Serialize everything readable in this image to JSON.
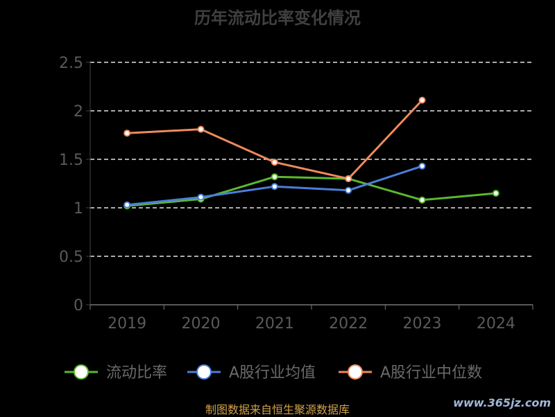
{
  "chart_data": {
    "type": "line",
    "title": "历年流动比率变化情况",
    "categories": [
      "2019",
      "2020",
      "2021",
      "2022",
      "2023",
      "2024"
    ],
    "ylim": [
      0,
      2.5
    ],
    "yticks": [
      "0",
      "0.5",
      "1",
      "1.5",
      "2",
      "2.5"
    ],
    "grid": "horizontal-dashed",
    "legend_position": "bottom",
    "series": [
      {
        "name": "流动比率",
        "color": "#5cb82e",
        "values": [
          1.02,
          1.09,
          1.32,
          1.3,
          1.08,
          1.15
        ]
      },
      {
        "name": "A股行业均值",
        "color": "#4a7fd8",
        "values": [
          1.03,
          1.11,
          1.22,
          1.18,
          1.43,
          null
        ]
      },
      {
        "name": "A股行业中位数",
        "color": "#f08a5d",
        "values": [
          1.77,
          1.81,
          1.47,
          1.3,
          2.11,
          null
        ]
      }
    ]
  },
  "footer": {
    "source": "制图数据来自恒生聚源数据库",
    "watermark": "www.365jz.com"
  }
}
